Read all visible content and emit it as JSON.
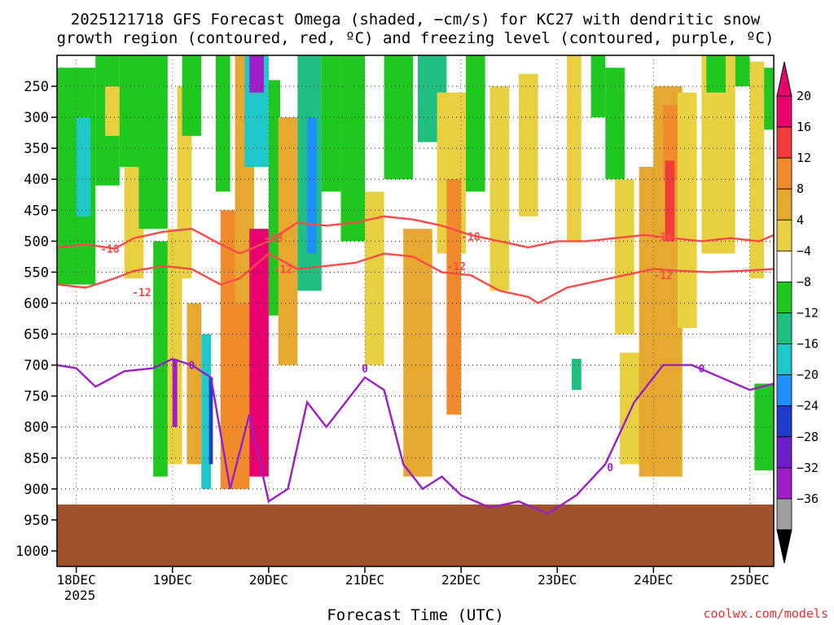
{
  "chart_data": {
    "type": "heatmap",
    "title_line1": "2025121718 GFS Forecast Omega (shaded, −cm/s) for KC27 with dendritic snow",
    "title_line2": "growth region (contoured, red, ºC) and freezing level (contoured, purple, ºC)",
    "xlabel": "Forecast Time (UTC)",
    "ylabel": "",
    "credit": "coolwx.com/models",
    "x_ticks": [
      "18DEC",
      "19DEC",
      "20DEC",
      "21DEC",
      "22DEC",
      "23DEC",
      "24DEC",
      "25DEC"
    ],
    "x_tick_values": [
      0,
      1,
      2,
      3,
      4,
      5,
      6,
      7
    ],
    "x_range": [
      -0.2,
      7.25
    ],
    "x_year": "2025",
    "y_ticks": [
      "250",
      "300",
      "350",
      "400",
      "450",
      "500",
      "550",
      "600",
      "650",
      "700",
      "750",
      "800",
      "850",
      "900",
      "950",
      "1000"
    ],
    "y_tick_values": [
      250,
      300,
      350,
      400,
      450,
      500,
      550,
      600,
      650,
      700,
      750,
      800,
      850,
      900,
      950,
      1000
    ],
    "y_range": [
      200,
      1025
    ],
    "ground_level_hpa": 925,
    "colorbar": {
      "labels": [
        "20",
        "16",
        "12",
        "8",
        "4",
        "−4",
        "−8",
        "−12",
        "−16",
        "−20",
        "−24",
        "−28",
        "−32",
        "−36"
      ],
      "bins": [
        {
          "lo": 20,
          "color": "#e8006e"
        },
        {
          "lo": 16,
          "color": "#f23c3c"
        },
        {
          "lo": 12,
          "color": "#f08a2a"
        },
        {
          "lo": 8,
          "color": "#e6a82e"
        },
        {
          "lo": 4,
          "color": "#e8d040"
        },
        {
          "lo": -4,
          "color": "#ffffff"
        },
        {
          "lo": -8,
          "color": "#1ec81e"
        },
        {
          "lo": -12,
          "color": "#1fbf80"
        },
        {
          "lo": -16,
          "color": "#1fc8c8"
        },
        {
          "lo": -20,
          "color": "#1e90ff"
        },
        {
          "lo": -24,
          "color": "#1e3cc8"
        },
        {
          "lo": -28,
          "color": "#6e1ec8"
        },
        {
          "lo": -32,
          "color": "#a01ec8"
        },
        {
          "lo": -36,
          "color": "#a0a0a0"
        }
      ],
      "over_color": "#e8006e",
      "under_color": "#000000"
    },
    "shade_cells": [
      {
        "x0": -0.2,
        "x1": 0.2,
        "y0": 220,
        "y1": 570,
        "v": -6
      },
      {
        "x0": 0.0,
        "x1": 0.15,
        "y0": 300,
        "y1": 460,
        "v": -14
      },
      {
        "x0": 0.2,
        "x1": 0.45,
        "y0": 200,
        "y1": 410,
        "v": -6
      },
      {
        "x0": 0.3,
        "x1": 0.5,
        "y0": 250,
        "y1": 330,
        "v": 6
      },
      {
        "x0": 0.45,
        "x1": 0.75,
        "y0": 200,
        "y1": 380,
        "v": -7
      },
      {
        "x0": 0.5,
        "x1": 0.7,
        "y0": 380,
        "y1": 560,
        "v": 6
      },
      {
        "x0": 0.65,
        "x1": 0.95,
        "y0": 200,
        "y1": 480,
        "v": -7
      },
      {
        "x0": 0.8,
        "x1": 0.95,
        "y0": 500,
        "y1": 880,
        "v": -7
      },
      {
        "x0": 0.95,
        "x1": 1.1,
        "y0": 480,
        "y1": 860,
        "v": 7
      },
      {
        "x0": 1.0,
        "x1": 1.05,
        "y0": 690,
        "y1": 800,
        "v": -30
      },
      {
        "x0": 1.05,
        "x1": 1.2,
        "y0": 250,
        "y1": 560,
        "v": 7
      },
      {
        "x0": 1.1,
        "x1": 1.3,
        "y0": 200,
        "y1": 330,
        "v": -7
      },
      {
        "x0": 1.15,
        "x1": 1.3,
        "y0": 600,
        "y1": 860,
        "v": 10
      },
      {
        "x0": 1.3,
        "x1": 1.4,
        "y0": 650,
        "y1": 900,
        "v": -14
      },
      {
        "x0": 1.38,
        "x1": 1.42,
        "y0": 720,
        "y1": 860,
        "v": -22
      },
      {
        "x0": 1.45,
        "x1": 1.6,
        "y0": 200,
        "y1": 420,
        "v": -7
      },
      {
        "x0": 1.5,
        "x1": 1.8,
        "y0": 450,
        "y1": 900,
        "v": 13
      },
      {
        "x0": 1.65,
        "x1": 1.85,
        "y0": 200,
        "y1": 600,
        "v": 9
      },
      {
        "x0": 1.75,
        "x1": 2.0,
        "y0": 200,
        "y1": 380,
        "v": -14
      },
      {
        "x0": 1.8,
        "x1": 1.95,
        "y0": 200,
        "y1": 260,
        "v": -30
      },
      {
        "x0": 1.8,
        "x1": 2.0,
        "y0": 480,
        "y1": 880,
        "v": 24
      },
      {
        "x0": 2.0,
        "x1": 2.12,
        "y0": 240,
        "y1": 620,
        "v": -7
      },
      {
        "x0": 2.1,
        "x1": 2.3,
        "y0": 300,
        "y1": 700,
        "v": 9
      },
      {
        "x0": 2.3,
        "x1": 2.55,
        "y0": 200,
        "y1": 580,
        "v": -10
      },
      {
        "x0": 2.4,
        "x1": 2.5,
        "y0": 300,
        "y1": 520,
        "v": -18
      },
      {
        "x0": 2.55,
        "x1": 2.75,
        "y0": 200,
        "y1": 420,
        "v": -7
      },
      {
        "x0": 2.75,
        "x1": 3.0,
        "y0": 200,
        "y1": 500,
        "v": -6
      },
      {
        "x0": 3.0,
        "x1": 3.2,
        "y0": 420,
        "y1": 700,
        "v": 6
      },
      {
        "x0": 3.2,
        "x1": 3.5,
        "y0": 200,
        "y1": 400,
        "v": -7
      },
      {
        "x0": 3.4,
        "x1": 3.7,
        "y0": 480,
        "y1": 880,
        "v": 9
      },
      {
        "x0": 3.55,
        "x1": 3.85,
        "y0": 200,
        "y1": 340,
        "v": -9
      },
      {
        "x0": 3.75,
        "x1": 4.05,
        "y0": 260,
        "y1": 520,
        "v": 7
      },
      {
        "x0": 3.85,
        "x1": 4.0,
        "y0": 400,
        "y1": 780,
        "v": 13
      },
      {
        "x0": 4.05,
        "x1": 4.25,
        "y0": 200,
        "y1": 420,
        "v": -7
      },
      {
        "x0": 4.3,
        "x1": 4.5,
        "y0": 250,
        "y1": 580,
        "v": 6
      },
      {
        "x0": 4.6,
        "x1": 4.8,
        "y0": 230,
        "y1": 460,
        "v": 6
      },
      {
        "x0": 5.1,
        "x1": 5.25,
        "y0": 200,
        "y1": 500,
        "v": 6
      },
      {
        "x0": 5.15,
        "x1": 5.25,
        "y0": 690,
        "y1": 740,
        "v": -9
      },
      {
        "x0": 5.35,
        "x1": 5.5,
        "y0": 200,
        "y1": 300,
        "v": -6
      },
      {
        "x0": 5.5,
        "x1": 5.7,
        "y0": 220,
        "y1": 400,
        "v": -7
      },
      {
        "x0": 5.6,
        "x1": 5.8,
        "y0": 400,
        "y1": 650,
        "v": 6
      },
      {
        "x0": 5.65,
        "x1": 6.0,
        "y0": 680,
        "y1": 860,
        "v": 6
      },
      {
        "x0": 5.85,
        "x1": 6.3,
        "y0": 380,
        "y1": 880,
        "v": 8
      },
      {
        "x0": 6.0,
        "x1": 6.3,
        "y0": 250,
        "y1": 600,
        "v": 9
      },
      {
        "x0": 6.1,
        "x1": 6.25,
        "y0": 280,
        "y1": 400,
        "v": 13
      },
      {
        "x0": 6.12,
        "x1": 6.22,
        "y0": 370,
        "y1": 500,
        "v": 18
      },
      {
        "x0": 6.25,
        "x1": 6.45,
        "y0": 260,
        "y1": 640,
        "v": 6
      },
      {
        "x0": 6.5,
        "x1": 6.85,
        "y0": 200,
        "y1": 520,
        "v": 6
      },
      {
        "x0": 6.55,
        "x1": 6.75,
        "y0": 200,
        "y1": 260,
        "v": -7
      },
      {
        "x0": 6.85,
        "x1": 7.0,
        "y0": 200,
        "y1": 250,
        "v": -7
      },
      {
        "x0": 7.0,
        "x1": 7.15,
        "y0": 210,
        "y1": 560,
        "v": 6
      },
      {
        "x0": 7.05,
        "x1": 7.25,
        "y0": 730,
        "y1": 870,
        "v": -8
      },
      {
        "x0": 7.15,
        "x1": 7.25,
        "y0": 220,
        "y1": 320,
        "v": -7
      }
    ],
    "contours": [
      {
        "name": "-18",
        "color": "#ff4a4a",
        "label": "-18",
        "x": [
          -0.2,
          0.1,
          0.4,
          0.6,
          0.9,
          1.2,
          1.5,
          1.7,
          2.0,
          2.3,
          2.6,
          2.9,
          3.2,
          3.5,
          3.8,
          4.1,
          4.4,
          4.7,
          5.0,
          5.3,
          5.6,
          5.9,
          6.2,
          6.5,
          6.8,
          7.1,
          7.25
        ],
        "y": [
          510,
          505,
          512,
          495,
          485,
          480,
          505,
          520,
          500,
          470,
          475,
          470,
          460,
          465,
          475,
          490,
          500,
          510,
          500,
          500,
          495,
          490,
          495,
          500,
          495,
          500,
          490
        ]
      },
      {
        "name": "-12",
        "color": "#ff4a4a",
        "label": "-12",
        "x": [
          -0.2,
          0.1,
          0.4,
          0.6,
          0.9,
          1.2,
          1.5,
          1.7,
          2.0,
          2.3,
          2.6,
          2.9,
          3.2,
          3.5,
          3.8,
          4.1,
          4.4,
          4.7,
          4.8,
          5.1,
          5.4,
          5.7,
          6.0,
          6.3,
          6.6,
          6.9,
          7.25
        ],
        "y": [
          570,
          575,
          560,
          548,
          540,
          545,
          570,
          560,
          520,
          545,
          540,
          535,
          520,
          525,
          550,
          555,
          580,
          590,
          600,
          575,
          565,
          555,
          545,
          548,
          550,
          548,
          545
        ]
      },
      {
        "name": "0",
        "color": "#9a1ec8",
        "label": "0",
        "x": [
          -0.2,
          0.0,
          0.2,
          0.5,
          0.8,
          1.0,
          1.2,
          1.4,
          1.6,
          1.8,
          2.0,
          2.2,
          2.4,
          2.6,
          2.8,
          3.0,
          3.2,
          3.4,
          3.6,
          3.8,
          4.0,
          4.3,
          4.6,
          4.9,
          5.2,
          5.5,
          5.8,
          6.1,
          6.4,
          6.7,
          7.0,
          7.25
        ],
        "y": [
          700,
          705,
          735,
          710,
          705,
          690,
          700,
          720,
          900,
          780,
          920,
          900,
          760,
          800,
          760,
          720,
          740,
          860,
          900,
          880,
          910,
          930,
          920,
          940,
          910,
          860,
          760,
          700,
          700,
          720,
          740,
          730
        ]
      }
    ],
    "contour_labels": [
      {
        "text": "-18",
        "x": 0.35,
        "y": 512
      },
      {
        "text": "-18",
        "x": 2.05,
        "y": 495
      },
      {
        "text": "-18",
        "x": 4.1,
        "y": 492
      },
      {
        "text": "-18",
        "x": 6.1,
        "y": 492
      },
      {
        "text": "-12",
        "x": 0.68,
        "y": 582
      },
      {
        "text": "-12",
        "x": 2.15,
        "y": 545
      },
      {
        "text": "-12",
        "x": 3.95,
        "y": 540
      },
      {
        "text": "-12",
        "x": 6.1,
        "y": 555
      },
      {
        "text": "0",
        "x": 1.2,
        "y": 700
      },
      {
        "text": "0",
        "x": 3.0,
        "y": 705
      },
      {
        "text": "0",
        "x": 5.55,
        "y": 865
      },
      {
        "text": "0",
        "x": 6.5,
        "y": 705
      }
    ]
  }
}
